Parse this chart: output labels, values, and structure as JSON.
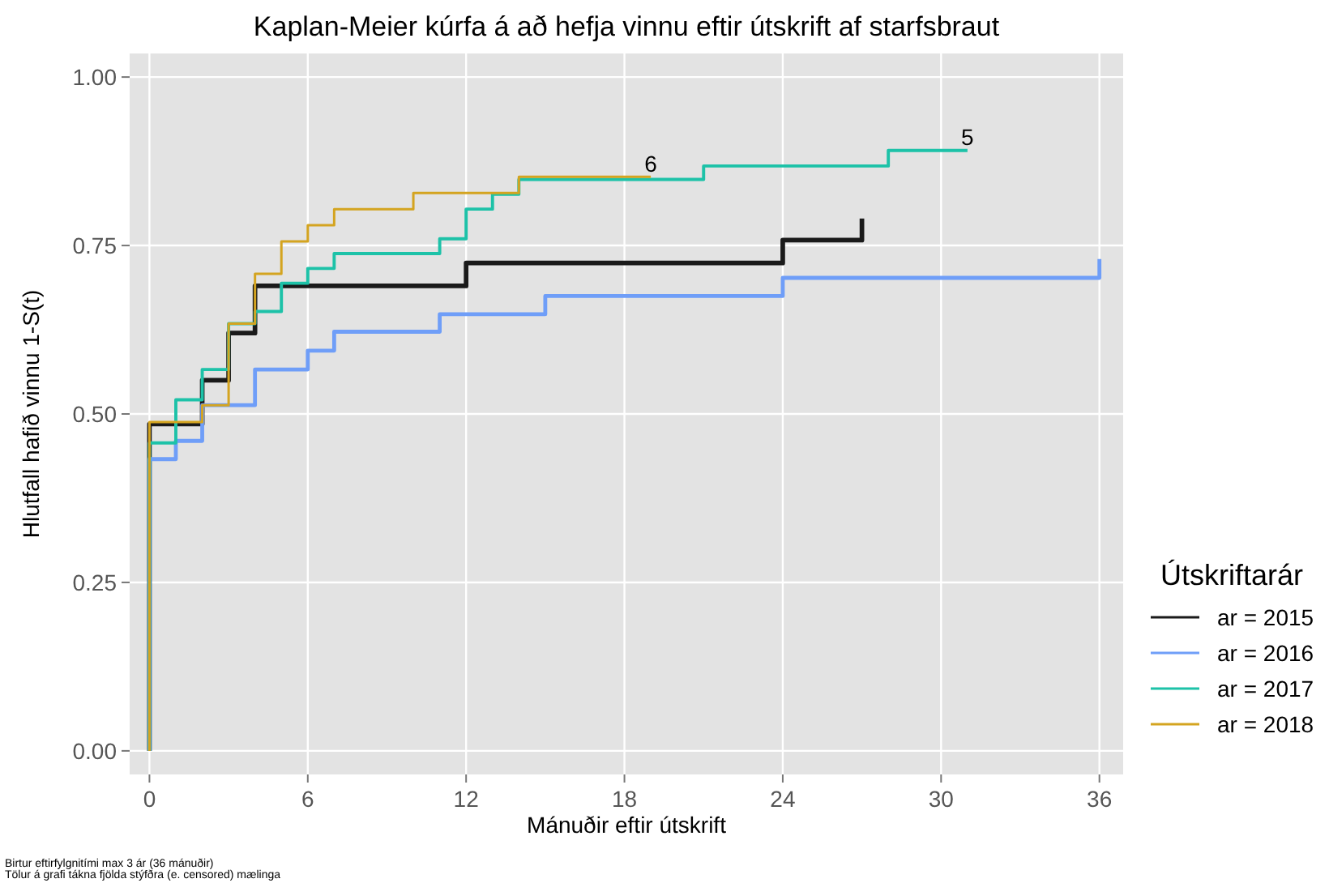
{
  "chart_data": {
    "type": "step",
    "title": "Kaplan-Meier kúrfa á að hefja vinnu eftir útskrift af starfsbraut",
    "xlabel": "Mánuðir eftir útskrift",
    "ylabel": "Hlutfall hafið vinnu 1-S(t)",
    "legend_title": "Útskriftarár",
    "xlim": [
      -0.75,
      36.9
    ],
    "ylim": [
      -0.035,
      1.035
    ],
    "xticks": [
      0,
      6,
      12,
      18,
      24,
      30,
      36
    ],
    "yticks": [
      {
        "value": 0,
        "label": "0.00"
      },
      {
        "value": 0.25,
        "label": "0.25"
      },
      {
        "value": 0.5,
        "label": "0.50"
      },
      {
        "value": 0.75,
        "label": "0.75"
      },
      {
        "value": 1,
        "label": "1.00"
      }
    ],
    "grid": true,
    "legend": "bottom right",
    "series": [
      {
        "name": "ar = 2015",
        "color": "#1a1a1a",
        "x": [
          0,
          0,
          2,
          3,
          4,
          12,
          24,
          27
        ],
        "values": [
          0,
          0.485,
          0.55,
          0.62,
          0.69,
          0.724,
          0.758,
          0.79
        ]
      },
      {
        "name": "ar = 2016",
        "color": "#6f9ef8",
        "x": [
          0,
          0,
          1,
          2,
          4,
          6,
          7,
          11,
          15,
          24,
          36
        ],
        "values": [
          0,
          0.433,
          0.46,
          0.513,
          0.566,
          0.594,
          0.622,
          0.648,
          0.675,
          0.702,
          0.73
        ]
      },
      {
        "name": "ar = 2017",
        "color": "#1dc2a8",
        "x": [
          0,
          0,
          1,
          2,
          3,
          4,
          5,
          6,
          7,
          11,
          12,
          13,
          14,
          21,
          28,
          31
        ],
        "values": [
          0,
          0.457,
          0.521,
          0.566,
          0.634,
          0.652,
          0.694,
          0.716,
          0.738,
          0.76,
          0.804,
          0.826,
          0.848,
          0.868,
          0.891,
          0.891
        ]
      },
      {
        "name": "ar = 2018",
        "color": "#d4a420",
        "x": [
          0,
          0,
          2,
          3,
          4,
          5,
          6,
          7,
          10,
          14,
          19
        ],
        "values": [
          0,
          0.488,
          0.513,
          0.634,
          0.708,
          0.756,
          0.78,
          0.804,
          0.828,
          0.852,
          0.852
        ]
      }
    ],
    "annotations": [
      {
        "text": "6",
        "x": 19,
        "y": 0.855
      },
      {
        "text": "5",
        "x": 31,
        "y": 0.894
      },
      "Birtur eftirfylgnitími max 3 ár (36 mánuðir)",
      "Tölur á grafi tákna fjölda  stýfðra (e. censored) mælinga"
    ]
  }
}
